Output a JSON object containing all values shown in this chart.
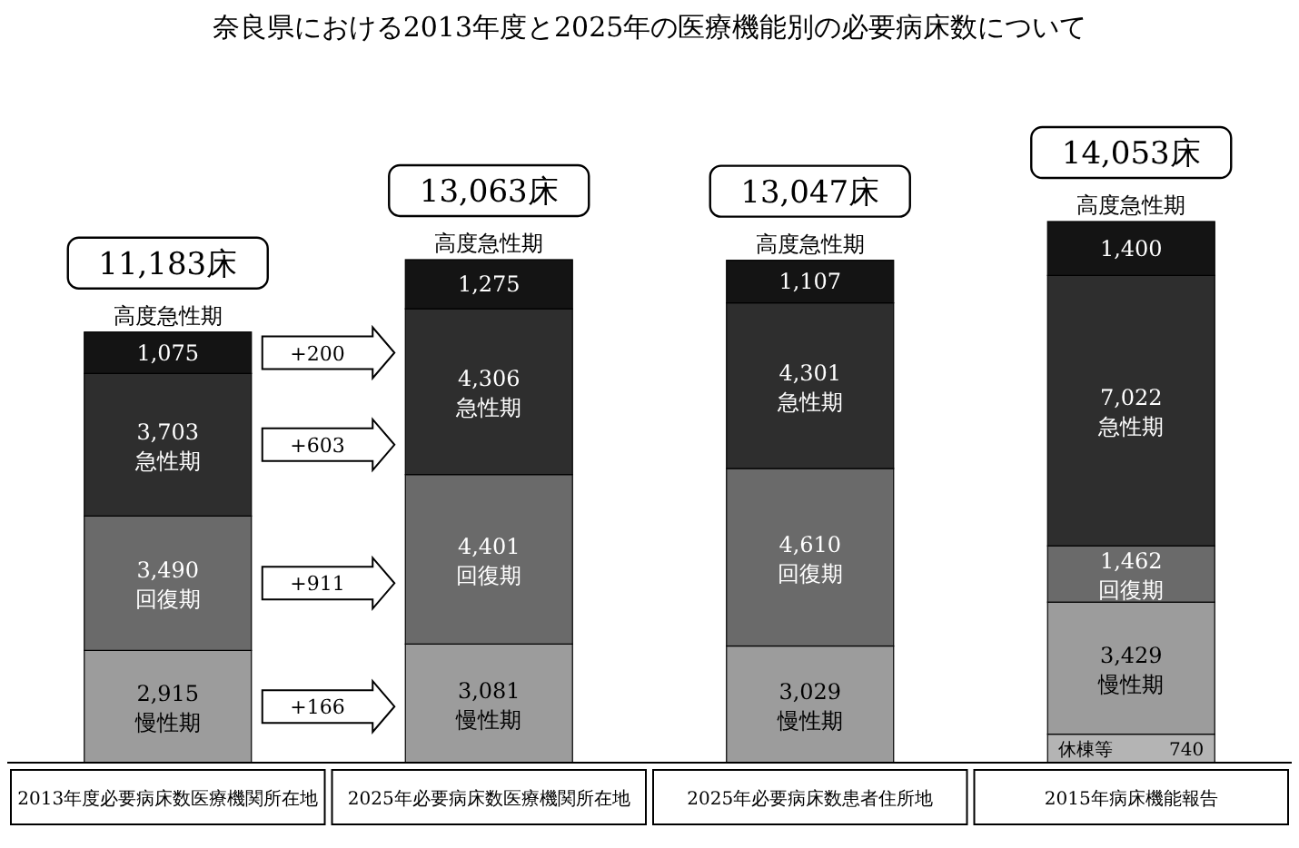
{
  "chart_data": {
    "type": "bar",
    "stacked": true,
    "title": "奈良県における2013年度と2025年の医療機能別の必要病床数について",
    "categories": [
      "2013年度必要病床数医療機関所在地",
      "2025年必要病床数医療機関所在地",
      "2025年必要病床数患者住所地",
      "2015年病床機能報告"
    ],
    "series": [
      {
        "name": "休棟等",
        "color": "#b4b4b4",
        "values": [
          null,
          null,
          null,
          740
        ],
        "value_labels": [
          null,
          null,
          null,
          "740"
        ]
      },
      {
        "name": "慢性期",
        "color": "#9c9c9c",
        "values": [
          2915,
          3081,
          3029,
          3429
        ],
        "value_labels": [
          "2,915",
          "3,081",
          "3,029",
          "3,429"
        ]
      },
      {
        "name": "回復期",
        "color": "#6a6a6a",
        "values": [
          3490,
          4401,
          4610,
          1462
        ],
        "value_labels": [
          "3,490",
          "4,401",
          "4,610",
          "1,462"
        ]
      },
      {
        "name": "急性期",
        "color": "#2e2e2e",
        "values": [
          3703,
          4306,
          4301,
          7022
        ],
        "value_labels": [
          "3,703",
          "4,306",
          "4,301",
          "7,022"
        ]
      },
      {
        "name": "高度急性期",
        "color": "#141414",
        "values": [
          1075,
          1275,
          1107,
          1400
        ],
        "value_labels": [
          "1,075",
          "1,275",
          "1,107",
          "1,400"
        ]
      }
    ],
    "totals": [
      "11,183床",
      "13,063床",
      "13,047床",
      "14,053床"
    ],
    "annotations": [
      "+200",
      "+603",
      "+911",
      "+166"
    ]
  }
}
